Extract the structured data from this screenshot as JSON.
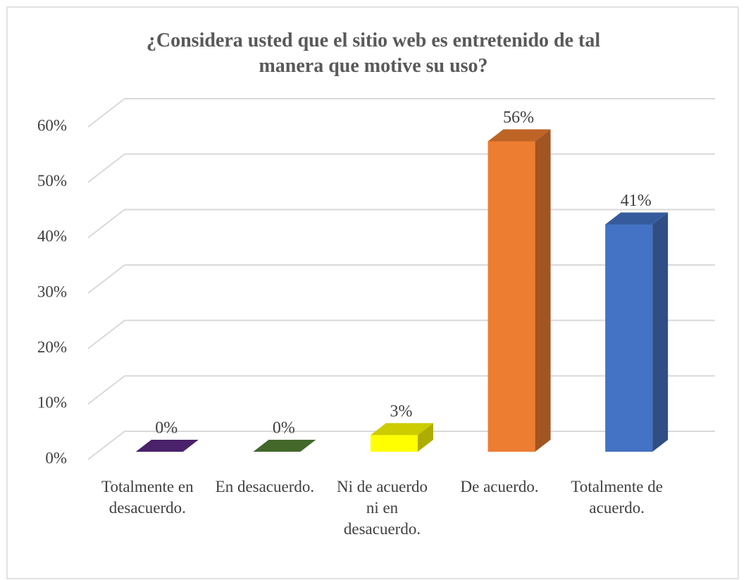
{
  "chart_data": {
    "type": "bar3d",
    "title": "¿Considera usted que el sitio web es entretenido de tal manera que motive su uso?",
    "categories": [
      "Totalmente en desacuerdo.",
      "En desacuerdo.",
      "Ni de acuerdo ni en desacuerdo.",
      "De acuerdo.",
      "Totalmente de acuerdo."
    ],
    "values": [
      0,
      0,
      3,
      56,
      41
    ],
    "value_labels": [
      "0%",
      "0%",
      "3%",
      "56%",
      "41%"
    ],
    "colors": [
      "#5b2a86",
      "#548235",
      "#ffff00",
      "#ed7d31",
      "#4472c4"
    ],
    "ylim": [
      0,
      60
    ],
    "yticks": [
      {
        "value": 0,
        "label": "0%"
      },
      {
        "value": 10,
        "label": "10%"
      },
      {
        "value": 20,
        "label": "20%"
      },
      {
        "value": 30,
        "label": "30%"
      },
      {
        "value": 40,
        "label": "40%"
      },
      {
        "value": 50,
        "label": "50%"
      },
      {
        "value": 60,
        "label": "60%"
      }
    ],
    "grid": true
  }
}
